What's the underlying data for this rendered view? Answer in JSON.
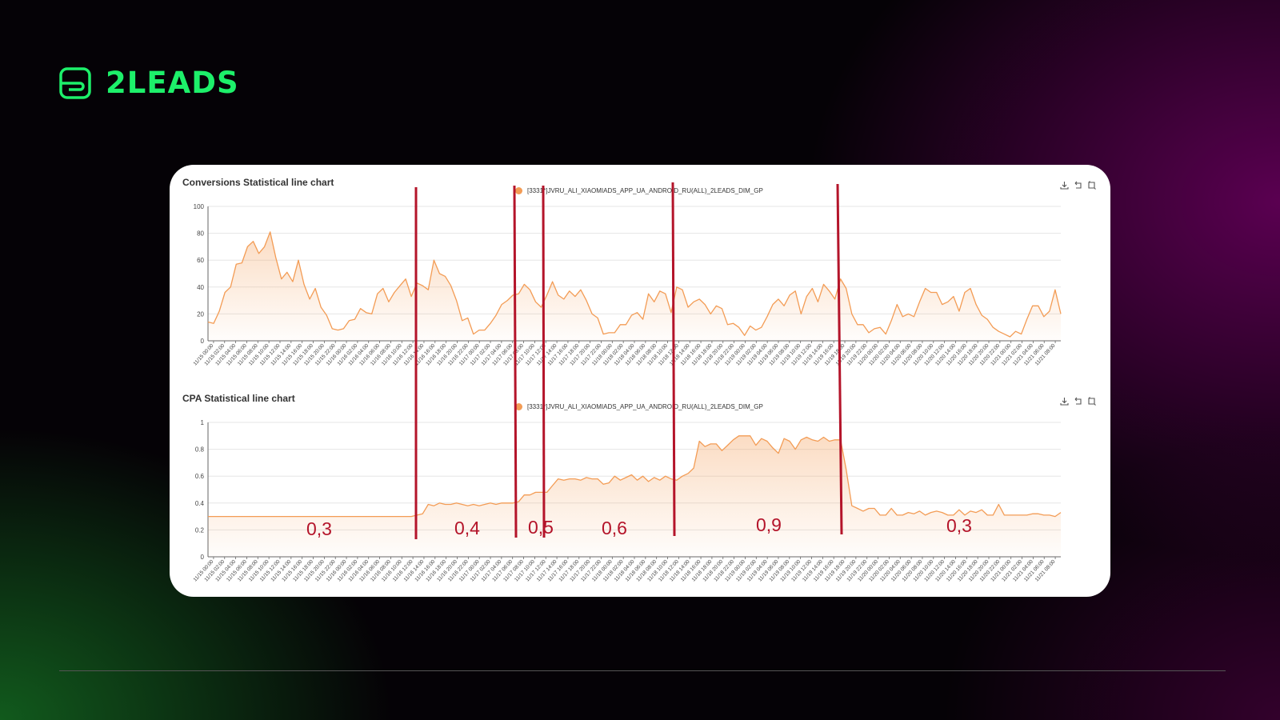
{
  "brand": {
    "name": "2LEADS",
    "color": "#1df06a"
  },
  "colors": {
    "series": "#f39c55",
    "annotation": "#b4142a",
    "grid": "#e6e6e6"
  },
  "icons": [
    "download-icon",
    "restore-icon",
    "save-image-icon"
  ],
  "annotations": {
    "segment_labels": [
      "0,3",
      "0,4",
      "0,5",
      "0,6",
      "0,9",
      "0,3"
    ]
  },
  "chart_data": [
    {
      "type": "area",
      "title": "Conversions  Statistical line chart",
      "series": [
        {
          "name": "[3331*]JVRU_ALI_XIAOMIADS_APP_UA_ANDROID_RU(ALL)_2LEADS_DIM_GP",
          "values": [
            14,
            13,
            22,
            36,
            40,
            57,
            58,
            70,
            74,
            65,
            70,
            81,
            62,
            46,
            51,
            44,
            60,
            42,
            31,
            39,
            25,
            19,
            9,
            8,
            9,
            15,
            16,
            24,
            21,
            20,
            35,
            39,
            29,
            36,
            41,
            46,
            33,
            43,
            41,
            38,
            60,
            50,
            48,
            41,
            30,
            15,
            17,
            5,
            8,
            8,
            13,
            19,
            27,
            30,
            34,
            35,
            42,
            38,
            29,
            25,
            34,
            44,
            34,
            31,
            37,
            33,
            38,
            30,
            20,
            17,
            5,
            6,
            6,
            12,
            12,
            19,
            21,
            16,
            35,
            29,
            37,
            35,
            21,
            40,
            38,
            25,
            29,
            31,
            27,
            20,
            26,
            24,
            12,
            13,
            10,
            4,
            11,
            8,
            10,
            18,
            27,
            31,
            26,
            34,
            37,
            20,
            33,
            39,
            29,
            42,
            37,
            31,
            46,
            39,
            20,
            12,
            12,
            6,
            9,
            10,
            5,
            15,
            27,
            18,
            20,
            18,
            29,
            39,
            36,
            36,
            27,
            29,
            33,
            22,
            36,
            39,
            27,
            19,
            16,
            10,
            7,
            5,
            3,
            7,
            5,
            16,
            26,
            26,
            18,
            22,
            38,
            20
          ]
        }
      ],
      "ylim": [
        0,
        100
      ],
      "yticks": [
        0,
        20,
        40,
        60,
        80,
        100
      ],
      "xlabels": [
        "11/15 00:00",
        "11/15 02:00",
        "11/15 04:00",
        "11/15 06:00",
        "11/15 08:00",
        "11/15 10:00",
        "11/15 12:00",
        "11/15 14:00",
        "11/15 16:00",
        "11/15 18:00",
        "11/15 20:00",
        "11/15 22:00",
        "11/16 00:00",
        "11/16 02:00",
        "11/16 04:00",
        "11/16 06:00",
        "11/16 08:00",
        "11/16 10:00",
        "11/16 12:00",
        "11/16 14:00",
        "11/16 16:00",
        "11/16 18:00",
        "11/16 20:00",
        "11/16 22:00",
        "11/17 00:00",
        "11/17 02:00",
        "11/17 04:00",
        "11/17 06:00",
        "11/17 08:00",
        "11/17 10:00",
        "11/17 12:00",
        "11/17 14:00",
        "11/17 16:00",
        "11/17 18:00",
        "11/17 20:00",
        "11/17 22:00",
        "11/18 00:00",
        "11/18 02:00",
        "11/18 04:00",
        "11/18 06:00",
        "11/18 08:00",
        "11/18 10:00",
        "11/18 12:00",
        "11/18 14:00",
        "11/18 16:00",
        "11/18 18:00",
        "11/18 20:00",
        "11/18 22:00",
        "11/19 00:00",
        "11/19 02:00",
        "11/19 04:00",
        "11/19 06:00",
        "11/19 08:00",
        "11/19 10:00",
        "11/19 12:00",
        "11/19 14:00",
        "11/19 16:00",
        "11/19 18:00",
        "11/19 20:00",
        "11/19 22:00",
        "11/20 00:00",
        "11/20 02:00",
        "11/20 04:00",
        "11/20 06:00",
        "11/20 08:00",
        "11/20 10:00",
        "11/20 12:00",
        "11/20 14:00",
        "11/20 16:00",
        "11/20 18:00",
        "11/20 20:00",
        "11/20 22:00",
        "11/21 00:00",
        "11/21 02:00",
        "11/21 04:00",
        "11/21 06:00",
        "11/21 08:00"
      ],
      "legend": "top-center",
      "grid": true
    },
    {
      "type": "area",
      "title": "CPA  Statistical line chart",
      "series": [
        {
          "name": "[3331*]JVRU_ALI_XIAOMIADS_APP_UA_ANDROID_RU(ALL)_2LEADS_DIM_GP",
          "values": [
            0.3,
            0.3,
            0.3,
            0.3,
            0.3,
            0.3,
            0.3,
            0.3,
            0.3,
            0.3,
            0.3,
            0.3,
            0.3,
            0.3,
            0.3,
            0.3,
            0.3,
            0.3,
            0.3,
            0.3,
            0.3,
            0.3,
            0.3,
            0.3,
            0.3,
            0.3,
            0.3,
            0.3,
            0.3,
            0.3,
            0.3,
            0.3,
            0.3,
            0.3,
            0.3,
            0.3,
            0.3,
            0.31,
            0.32,
            0.39,
            0.38,
            0.4,
            0.39,
            0.39,
            0.4,
            0.39,
            0.38,
            0.39,
            0.38,
            0.39,
            0.4,
            0.39,
            0.4,
            0.4,
            0.4,
            0.41,
            0.46,
            0.46,
            0.48,
            0.48,
            0.48,
            0.53,
            0.58,
            0.57,
            0.58,
            0.58,
            0.57,
            0.59,
            0.58,
            0.58,
            0.54,
            0.55,
            0.6,
            0.57,
            0.59,
            0.61,
            0.57,
            0.6,
            0.56,
            0.59,
            0.57,
            0.6,
            0.58,
            0.57,
            0.6,
            0.62,
            0.66,
            0.86,
            0.82,
            0.84,
            0.84,
            0.79,
            0.83,
            0.87,
            0.9,
            0.9,
            0.9,
            0.83,
            0.88,
            0.86,
            0.81,
            0.77,
            0.88,
            0.86,
            0.8,
            0.87,
            0.89,
            0.87,
            0.86,
            0.89,
            0.86,
            0.87,
            0.87,
            0.65,
            0.38,
            0.36,
            0.34,
            0.36,
            0.36,
            0.31,
            0.31,
            0.36,
            0.31,
            0.31,
            0.33,
            0.32,
            0.34,
            0.31,
            0.33,
            0.34,
            0.33,
            0.31,
            0.31,
            0.35,
            0.31,
            0.34,
            0.33,
            0.35,
            0.31,
            0.31,
            0.39,
            0.31,
            0.31,
            0.31,
            0.31,
            0.31,
            0.32,
            0.32,
            0.31,
            0.31,
            0.3,
            0.33
          ]
        }
      ],
      "ylim": [
        0,
        1
      ],
      "yticks": [
        0,
        0.2,
        0.4,
        0.6,
        0.8,
        1
      ],
      "xlabels": [
        "11/15 00:00",
        "11/15 02:00",
        "11/15 04:00",
        "11/15 06:00",
        "11/15 08:00",
        "11/15 10:00",
        "11/15 12:00",
        "11/15 14:00",
        "11/15 16:00",
        "11/15 18:00",
        "11/15 20:00",
        "11/15 22:00",
        "11/16 00:00",
        "11/16 02:00",
        "11/16 04:00",
        "11/16 06:00",
        "11/16 08:00",
        "11/16 10:00",
        "11/16 12:00",
        "11/16 14:00",
        "11/16 16:00",
        "11/16 18:00",
        "11/16 20:00",
        "11/16 22:00",
        "11/17 00:00",
        "11/17 02:00",
        "11/17 04:00",
        "11/17 06:00",
        "11/17 08:00",
        "11/17 10:00",
        "11/17 12:00",
        "11/17 14:00",
        "11/17 16:00",
        "11/17 18:00",
        "11/17 20:00",
        "11/17 22:00",
        "11/18 00:00",
        "11/18 02:00",
        "11/18 04:00",
        "11/18 06:00",
        "11/18 08:00",
        "11/18 10:00",
        "11/18 12:00",
        "11/18 14:00",
        "11/18 16:00",
        "11/18 18:00",
        "11/18 20:00",
        "11/18 22:00",
        "11/19 00:00",
        "11/19 02:00",
        "11/19 04:00",
        "11/19 06:00",
        "11/19 08:00",
        "11/19 10:00",
        "11/19 12:00",
        "11/19 14:00",
        "11/19 16:00",
        "11/19 18:00",
        "11/19 20:00",
        "11/19 22:00",
        "11/20 00:00",
        "11/20 02:00",
        "11/20 04:00",
        "11/20 06:00",
        "11/20 08:00",
        "11/20 10:00",
        "11/20 12:00",
        "11/20 14:00",
        "11/20 16:00",
        "11/20 18:00",
        "11/20 20:00",
        "11/20 22:00",
        "11/21 00:00",
        "11/21 02:00",
        "11/21 04:00",
        "11/21 06:00",
        "11/21 08:00"
      ],
      "legend": "top-center",
      "grid": true
    }
  ]
}
